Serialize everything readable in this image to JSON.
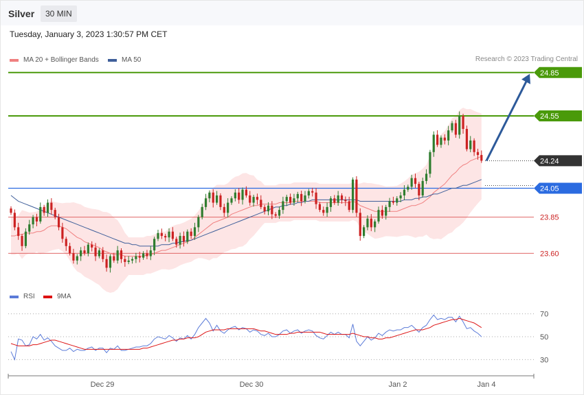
{
  "header": {
    "instrument": "Silver",
    "timeframe": "30 MIN",
    "datetime": "Tuesday, January 3, 2023 1:30:57 PM CET"
  },
  "legend": {
    "ma20_label": "MA 20 + Bollinger Bands",
    "ma50_label": "MA 50",
    "credit": "Research © 2023 Trading Central",
    "rsi_label": "RSI",
    "rsi_ma_label": "9MA"
  },
  "colors": {
    "ma20": "#f08080",
    "ma50": "#3f5f9a",
    "up": "#2f7d2f",
    "down": "#cc2222",
    "resistance": "#4a9a0a",
    "support": "#e06666",
    "pivot": "#2b6be0",
    "arrow": "#2d5a9a",
    "rsi": "#5b7bd8",
    "rsi_ma": "#dd1111",
    "band": "#fde0e0"
  },
  "chart_data": [
    {
      "type": "candlestick",
      "title": "Silver 30 MIN",
      "x_labels": [
        "Dec 29",
        "Dec 30",
        "Jan 2",
        "Jan 4"
      ],
      "ylim": [
        23.45,
        24.92
      ],
      "levels": [
        {
          "value": 24.85,
          "label": "24.85",
          "kind": "resistance"
        },
        {
          "value": 24.55,
          "label": "24.55",
          "kind": "resistance"
        },
        {
          "value": 24.24,
          "label": "24.24",
          "kind": "last"
        },
        {
          "value": 24.05,
          "label": "24.05",
          "kind": "pivot"
        },
        {
          "value": 23.85,
          "label": "23.85",
          "kind": "support"
        },
        {
          "value": 23.6,
          "label": "23.60",
          "kind": "support"
        }
      ],
      "arrow": {
        "from": 24.24,
        "to": 24.85
      },
      "closes": [
        23.88,
        23.78,
        23.72,
        23.65,
        23.75,
        23.8,
        23.85,
        23.82,
        23.92,
        23.88,
        23.95,
        23.9,
        23.85,
        23.78,
        23.7,
        23.65,
        23.6,
        23.55,
        23.58,
        23.62,
        23.6,
        23.66,
        23.64,
        23.58,
        23.62,
        23.56,
        23.5,
        23.58,
        23.55,
        23.62,
        23.56,
        23.54,
        23.55,
        23.56,
        23.58,
        23.57,
        23.6,
        23.58,
        23.62,
        23.7,
        23.74,
        23.72,
        23.71,
        23.75,
        23.7,
        23.66,
        23.72,
        23.68,
        23.75,
        23.72,
        23.78,
        23.85,
        23.92,
        23.98,
        24.02,
        23.95,
        24.0,
        23.92,
        23.88,
        23.95,
        23.98,
        24.02,
        23.97,
        24.04,
        24.0,
        23.95,
        23.99,
        23.97,
        23.92,
        23.89,
        23.93,
        23.87,
        23.86,
        23.9,
        23.96,
        23.99,
        23.95,
        23.98,
        24.01,
        23.96,
        24.0,
        24.03,
        24.02,
        23.94,
        23.9,
        23.88,
        23.92,
        23.98,
        23.95,
        24.0,
        23.97,
        23.96,
        23.9,
        24.11,
        23.88,
        23.72,
        23.78,
        23.84,
        23.78,
        23.82,
        23.9,
        23.86,
        23.92,
        23.96,
        23.95,
        23.98,
        24.0,
        24.04,
        24.06,
        24.12,
        24.08,
        24.0,
        24.1,
        24.15,
        24.3,
        24.42,
        24.35,
        24.4,
        24.38,
        24.45,
        24.5,
        24.42,
        24.55,
        24.46,
        24.32,
        24.38,
        24.3,
        24.28,
        24.24
      ],
      "ma20": [
        23.72,
        23.72,
        23.73,
        23.73,
        23.74,
        23.74,
        23.74,
        23.75,
        23.75,
        23.76,
        23.78,
        23.79,
        23.79,
        23.79,
        23.78,
        23.77,
        23.75,
        23.73,
        23.71,
        23.7,
        23.68,
        23.67,
        23.66,
        23.65,
        23.64,
        23.62,
        23.61,
        23.6,
        23.59,
        23.59,
        23.59,
        23.58,
        23.58,
        23.58,
        23.58,
        23.58,
        23.58,
        23.59,
        23.59,
        23.6,
        23.61,
        23.62,
        23.62,
        23.63,
        23.64,
        23.65,
        23.66,
        23.67,
        23.68,
        23.69,
        23.71,
        23.73,
        23.75,
        23.77,
        23.79,
        23.81,
        23.82,
        23.83,
        23.84,
        23.85,
        23.87,
        23.88,
        23.89,
        23.9,
        23.91,
        23.92,
        23.93,
        23.93,
        23.94,
        23.94,
        23.94,
        23.94,
        23.94,
        23.95,
        23.95,
        23.95,
        23.95,
        23.96,
        23.96,
        23.96,
        23.96,
        23.96,
        23.96,
        23.96,
        23.95,
        23.95,
        23.95,
        23.95,
        23.95,
        23.95,
        23.95,
        23.95,
        23.95,
        23.96,
        23.95,
        23.93,
        23.92,
        23.91,
        23.9,
        23.89,
        23.89,
        23.89,
        23.89,
        23.89,
        23.89,
        23.89,
        23.9,
        23.91,
        23.92,
        23.93,
        23.93,
        23.94,
        23.95,
        23.97,
        23.99,
        24.02,
        24.04,
        24.06,
        24.08,
        24.11,
        24.14,
        24.16,
        24.19,
        24.21,
        24.22,
        24.24,
        24.25,
        24.26,
        24.27
      ],
      "ma50": [
        24.0,
        23.98,
        23.96,
        23.95,
        23.94,
        23.93,
        23.92,
        23.91,
        23.9,
        23.89,
        23.88,
        23.87,
        23.86,
        23.85,
        23.84,
        23.83,
        23.82,
        23.81,
        23.8,
        23.79,
        23.78,
        23.77,
        23.76,
        23.75,
        23.74,
        23.73,
        23.72,
        23.71,
        23.7,
        23.69,
        23.68,
        23.67,
        23.67,
        23.66,
        23.66,
        23.65,
        23.65,
        23.65,
        23.65,
        23.65,
        23.65,
        23.66,
        23.66,
        23.66,
        23.67,
        23.67,
        23.68,
        23.68,
        23.69,
        23.69,
        23.7,
        23.71,
        23.72,
        23.73,
        23.74,
        23.75,
        23.76,
        23.77,
        23.78,
        23.79,
        23.8,
        23.81,
        23.82,
        23.83,
        23.84,
        23.85,
        23.86,
        23.87,
        23.88,
        23.89,
        23.9,
        23.91,
        23.92,
        23.92,
        23.93,
        23.93,
        23.94,
        23.94,
        23.95,
        23.95,
        23.96,
        23.96,
        23.97,
        23.97,
        23.97,
        23.97,
        23.97,
        23.97,
        23.97,
        23.97,
        23.97,
        23.97,
        23.97,
        23.97,
        23.97,
        23.96,
        23.96,
        23.96,
        23.96,
        23.96,
        23.96,
        23.96,
        23.96,
        23.96,
        23.96,
        23.96,
        23.96,
        23.97,
        23.97,
        23.97,
        23.98,
        23.98,
        23.99,
        23.99,
        24.0,
        24.01,
        24.01,
        24.02,
        24.03,
        24.04,
        24.05,
        24.05,
        24.06,
        24.07,
        24.07,
        24.08,
        24.09,
        24.1,
        24.11
      ]
    },
    {
      "type": "line",
      "title": "RSI",
      "ylim": [
        20,
        80
      ],
      "y_ticks": [
        30,
        50,
        70
      ],
      "series": [
        {
          "name": "RSI",
          "values": [
            37,
            30,
            48,
            47,
            42,
            43,
            50,
            48,
            52,
            47,
            49,
            46,
            42,
            40,
            38,
            38,
            40,
            37,
            39,
            38,
            38,
            40,
            41,
            38,
            40,
            40,
            36,
            40,
            39,
            42,
            38,
            38,
            39,
            40,
            41,
            41,
            42,
            42,
            44,
            48,
            50,
            49,
            48,
            51,
            49,
            46,
            49,
            48,
            51,
            48,
            52,
            58,
            62,
            66,
            62,
            55,
            60,
            55,
            53,
            56,
            58,
            59,
            56,
            58,
            57,
            54,
            56,
            55,
            52,
            51,
            53,
            50,
            50,
            52,
            55,
            56,
            53,
            55,
            56,
            53,
            55,
            56,
            55,
            51,
            49,
            48,
            51,
            54,
            52,
            54,
            52,
            52,
            49,
            61,
            46,
            42,
            46,
            50,
            47,
            49,
            53,
            51,
            54,
            56,
            55,
            56,
            56,
            58,
            58,
            60,
            57,
            54,
            58,
            60,
            65,
            69,
            65,
            66,
            65,
            67,
            67,
            63,
            68,
            63,
            57,
            58,
            55,
            53,
            50
          ]
        },
        {
          "name": "9MA",
          "values": [
            44,
            43,
            42,
            42,
            42,
            42,
            43,
            43,
            44,
            45,
            46,
            47,
            47,
            46,
            45,
            44,
            43,
            42,
            41,
            40,
            39,
            39,
            39,
            39,
            39,
            39,
            39,
            39,
            39,
            39,
            39,
            39,
            39,
            39,
            39,
            39,
            40,
            40,
            41,
            42,
            43,
            44,
            45,
            46,
            47,
            47,
            48,
            48,
            49,
            49,
            49,
            50,
            52,
            54,
            55,
            56,
            56,
            56,
            56,
            57,
            57,
            57,
            57,
            57,
            57,
            57,
            57,
            56,
            55,
            55,
            54,
            53,
            52,
            52,
            52,
            52,
            53,
            53,
            54,
            54,
            54,
            54,
            54,
            54,
            54,
            53,
            52,
            52,
            52,
            52,
            52,
            52,
            52,
            53,
            52,
            51,
            50,
            50,
            49,
            49,
            48,
            48,
            49,
            49,
            50,
            51,
            52,
            53,
            54,
            55,
            56,
            56,
            56,
            57,
            58,
            60,
            61,
            62,
            63,
            64,
            65,
            65,
            66,
            65,
            64,
            63,
            62,
            60,
            58
          ]
        }
      ]
    }
  ]
}
